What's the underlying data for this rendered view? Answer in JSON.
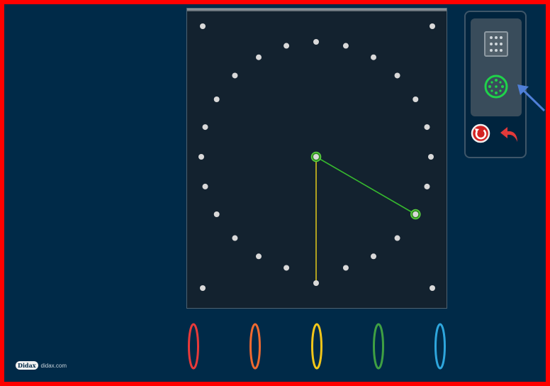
{
  "app": {
    "logo_badge": "Didax",
    "logo_text": "didax.com"
  },
  "board": {
    "peg_color": "#d9d9d9",
    "bands": [
      {
        "color": "#36b82f",
        "from_peg": "center",
        "to_peg": "ring-8"
      },
      {
        "color": "#d8c21c",
        "from_peg": "center",
        "to_peg": "bottom-center"
      }
    ]
  },
  "tools": {
    "items": [
      {
        "name": "grid-geoboard",
        "selected": false
      },
      {
        "name": "circle-geoboard",
        "selected": true,
        "accent": "#1fd34a"
      }
    ],
    "actions": [
      "reset",
      "undo"
    ]
  },
  "band_tray": {
    "colors": [
      "#e83a3a",
      "#f06a30",
      "#f2c619",
      "#3fa043",
      "#2ea6dd"
    ]
  }
}
